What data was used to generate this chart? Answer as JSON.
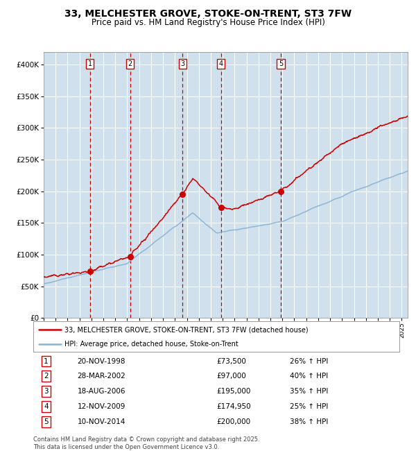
{
  "title": "33, MELCHESTER GROVE, STOKE-ON-TRENT, ST3 7FW",
  "subtitle": "Price paid vs. HM Land Registry's House Price Index (HPI)",
  "ytick_values": [
    0,
    50000,
    100000,
    150000,
    200000,
    250000,
    300000,
    350000,
    400000
  ],
  "ylim": [
    0,
    420000
  ],
  "xlim_start": 1995.0,
  "xlim_end": 2025.5,
  "plot_bg_color": "#dce8f0",
  "grid_color": "#ffffff",
  "hpi_line_color": "#8ab4d4",
  "price_line_color": "#cc0000",
  "sale_marker_color": "#cc0000",
  "dashed_line_color": "#cc0000",
  "legend_box_color": "#cc0000",
  "purchases": [
    {
      "num": 1,
      "date": "20-NOV-1998",
      "year": 1998.89,
      "price": 73500,
      "pct": "26%",
      "dir": "↑"
    },
    {
      "num": 2,
      "date": "28-MAR-2002",
      "year": 2002.24,
      "price": 97000,
      "pct": "40%",
      "dir": "↑"
    },
    {
      "num": 3,
      "date": "18-AUG-2006",
      "year": 2006.63,
      "price": 195000,
      "pct": "35%",
      "dir": "↑"
    },
    {
      "num": 4,
      "date": "12-NOV-2009",
      "year": 2009.87,
      "price": 174950,
      "pct": "25%",
      "dir": "↑"
    },
    {
      "num": 5,
      "date": "10-NOV-2014",
      "year": 2014.87,
      "price": 200000,
      "pct": "38%",
      "dir": "↑"
    }
  ],
  "legend_line1": "33, MELCHESTER GROVE, STOKE-ON-TRENT, ST3 7FW (detached house)",
  "legend_line2": "HPI: Average price, detached house, Stoke-on-Trent",
  "footer": "Contains HM Land Registry data © Crown copyright and database right 2025.\nThis data is licensed under the Open Government Licence v3.0.",
  "title_fontsize": 10,
  "subtitle_fontsize": 8.5
}
